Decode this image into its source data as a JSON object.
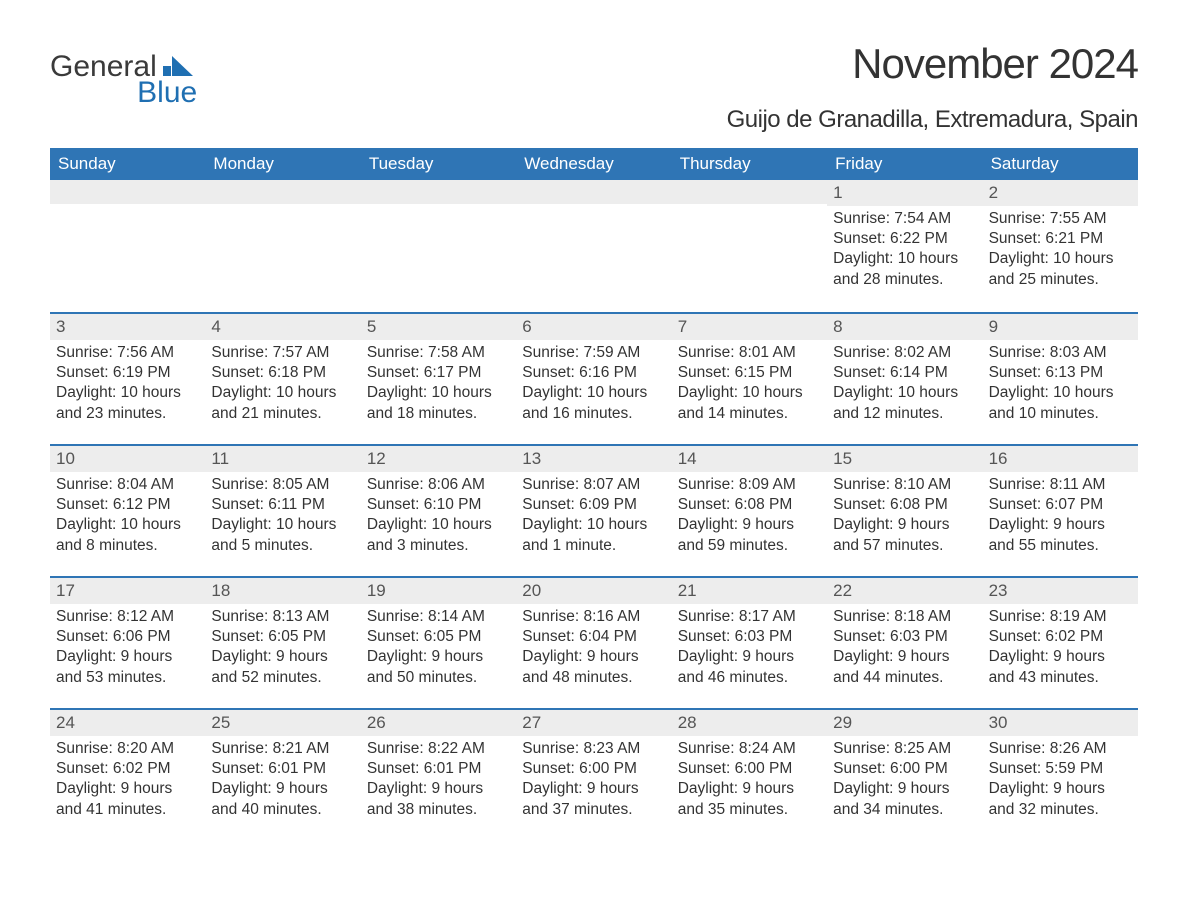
{
  "logo": {
    "text1": "General",
    "text2": "Blue",
    "icon_color": "#1f6fb2"
  },
  "header": {
    "month_title": "November 2024",
    "location": "Guijo de Granadilla, Extremadura, Spain"
  },
  "colors": {
    "header_bg": "#2f75b5",
    "header_fg": "#ffffff",
    "row_border": "#2f75b5",
    "daynum_bg": "#ededed",
    "text": "#333333"
  },
  "weekdays": [
    "Sunday",
    "Monday",
    "Tuesday",
    "Wednesday",
    "Thursday",
    "Friday",
    "Saturday"
  ],
  "weeks": [
    [
      null,
      null,
      null,
      null,
      null,
      {
        "n": "1",
        "sunrise": "7:54 AM",
        "sunset": "6:22 PM",
        "day_h": "10",
        "day_m": "28"
      },
      {
        "n": "2",
        "sunrise": "7:55 AM",
        "sunset": "6:21 PM",
        "day_h": "10",
        "day_m": "25"
      }
    ],
    [
      {
        "n": "3",
        "sunrise": "7:56 AM",
        "sunset": "6:19 PM",
        "day_h": "10",
        "day_m": "23"
      },
      {
        "n": "4",
        "sunrise": "7:57 AM",
        "sunset": "6:18 PM",
        "day_h": "10",
        "day_m": "21"
      },
      {
        "n": "5",
        "sunrise": "7:58 AM",
        "sunset": "6:17 PM",
        "day_h": "10",
        "day_m": "18"
      },
      {
        "n": "6",
        "sunrise": "7:59 AM",
        "sunset": "6:16 PM",
        "day_h": "10",
        "day_m": "16"
      },
      {
        "n": "7",
        "sunrise": "8:01 AM",
        "sunset": "6:15 PM",
        "day_h": "10",
        "day_m": "14"
      },
      {
        "n": "8",
        "sunrise": "8:02 AM",
        "sunset": "6:14 PM",
        "day_h": "10",
        "day_m": "12"
      },
      {
        "n": "9",
        "sunrise": "8:03 AM",
        "sunset": "6:13 PM",
        "day_h": "10",
        "day_m": "10"
      }
    ],
    [
      {
        "n": "10",
        "sunrise": "8:04 AM",
        "sunset": "6:12 PM",
        "day_h": "10",
        "day_m": "8"
      },
      {
        "n": "11",
        "sunrise": "8:05 AM",
        "sunset": "6:11 PM",
        "day_h": "10",
        "day_m": "5"
      },
      {
        "n": "12",
        "sunrise": "8:06 AM",
        "sunset": "6:10 PM",
        "day_h": "10",
        "day_m": "3"
      },
      {
        "n": "13",
        "sunrise": "8:07 AM",
        "sunset": "6:09 PM",
        "day_h": "10",
        "day_m": "1"
      },
      {
        "n": "14",
        "sunrise": "8:09 AM",
        "sunset": "6:08 PM",
        "day_h": "9",
        "day_m": "59"
      },
      {
        "n": "15",
        "sunrise": "8:10 AM",
        "sunset": "6:08 PM",
        "day_h": "9",
        "day_m": "57"
      },
      {
        "n": "16",
        "sunrise": "8:11 AM",
        "sunset": "6:07 PM",
        "day_h": "9",
        "day_m": "55"
      }
    ],
    [
      {
        "n": "17",
        "sunrise": "8:12 AM",
        "sunset": "6:06 PM",
        "day_h": "9",
        "day_m": "53"
      },
      {
        "n": "18",
        "sunrise": "8:13 AM",
        "sunset": "6:05 PM",
        "day_h": "9",
        "day_m": "52"
      },
      {
        "n": "19",
        "sunrise": "8:14 AM",
        "sunset": "6:05 PM",
        "day_h": "9",
        "day_m": "50"
      },
      {
        "n": "20",
        "sunrise": "8:16 AM",
        "sunset": "6:04 PM",
        "day_h": "9",
        "day_m": "48"
      },
      {
        "n": "21",
        "sunrise": "8:17 AM",
        "sunset": "6:03 PM",
        "day_h": "9",
        "day_m": "46"
      },
      {
        "n": "22",
        "sunrise": "8:18 AM",
        "sunset": "6:03 PM",
        "day_h": "9",
        "day_m": "44"
      },
      {
        "n": "23",
        "sunrise": "8:19 AM",
        "sunset": "6:02 PM",
        "day_h": "9",
        "day_m": "43"
      }
    ],
    [
      {
        "n": "24",
        "sunrise": "8:20 AM",
        "sunset": "6:02 PM",
        "day_h": "9",
        "day_m": "41"
      },
      {
        "n": "25",
        "sunrise": "8:21 AM",
        "sunset": "6:01 PM",
        "day_h": "9",
        "day_m": "40"
      },
      {
        "n": "26",
        "sunrise": "8:22 AM",
        "sunset": "6:01 PM",
        "day_h": "9",
        "day_m": "38"
      },
      {
        "n": "27",
        "sunrise": "8:23 AM",
        "sunset": "6:00 PM",
        "day_h": "9",
        "day_m": "37"
      },
      {
        "n": "28",
        "sunrise": "8:24 AM",
        "sunset": "6:00 PM",
        "day_h": "9",
        "day_m": "35"
      },
      {
        "n": "29",
        "sunrise": "8:25 AM",
        "sunset": "6:00 PM",
        "day_h": "9",
        "day_m": "34"
      },
      {
        "n": "30",
        "sunrise": "8:26 AM",
        "sunset": "5:59 PM",
        "day_h": "9",
        "day_m": "32"
      }
    ]
  ],
  "labels": {
    "sunrise": "Sunrise:",
    "sunset": "Sunset:",
    "daylight": "Daylight:",
    "hours": "hours",
    "minutes_suffix": "minutes.",
    "minute_suffix": "minute.",
    "and": "and"
  }
}
